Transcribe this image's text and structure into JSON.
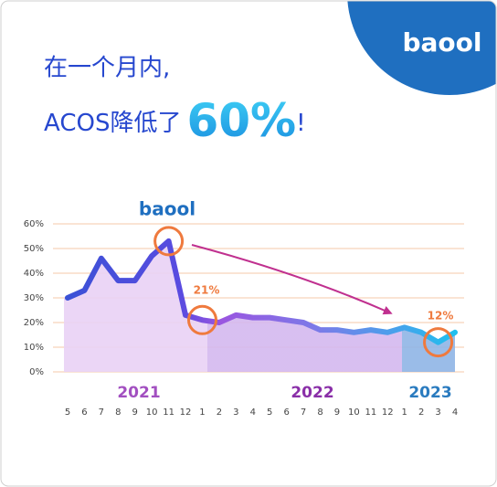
{
  "chart_data": {
    "type": "line",
    "brand": "baool",
    "title": "在一个月内,",
    "subtitle": "ACOS降低了",
    "highlight": "60%",
    "highlight_suffix": "!",
    "categories": [
      "5",
      "6",
      "7",
      "8",
      "9",
      "10",
      "11",
      "12",
      "1",
      "2",
      "3",
      "4",
      "5",
      "6",
      "7",
      "8",
      "9",
      "10",
      "11",
      "12",
      "1",
      "2",
      "3",
      "4"
    ],
    "year_labels": [
      "2021",
      "2022",
      "2023"
    ],
    "values": [
      30,
      33,
      46,
      37,
      37,
      47,
      53,
      23,
      21,
      20,
      23,
      22,
      22,
      21,
      20,
      17,
      17,
      16,
      17,
      16,
      18,
      16,
      12,
      16
    ],
    "annotations": [
      "21%",
      "12%"
    ],
    "ylim": [
      0,
      60
    ],
    "yticks": [
      {
        "value": 0,
        "label": "0%"
      },
      {
        "value": 10,
        "label": "10%"
      },
      {
        "value": 20,
        "label": "20%"
      },
      {
        "value": 30,
        "label": "30%"
      },
      {
        "value": 40,
        "label": "40%"
      },
      {
        "value": 50,
        "label": "50%"
      },
      {
        "value": 60,
        "label": "60%"
      }
    ],
    "grid": true
  }
}
